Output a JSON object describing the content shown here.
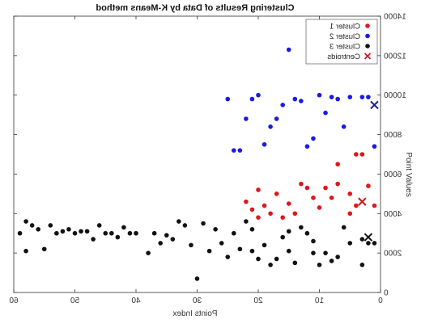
{
  "chart_data": {
    "type": "scatter",
    "title": "Clustering Results of Data by K-Means method",
    "xlabel": "Points Index",
    "ylabel": "Point Values",
    "xlim": [
      0,
      60
    ],
    "ylim": [
      0,
      14000
    ],
    "x_reversed": true,
    "xticks": [
      0,
      10,
      20,
      30,
      40,
      50,
      60
    ],
    "yticks": [
      0,
      2000,
      4000,
      6000,
      8000,
      10000,
      12000,
      14000
    ],
    "ytick_labels": [
      "0",
      "2000",
      "4000",
      "6000",
      "8000",
      "10000",
      "12000",
      "14000"
    ],
    "legend_position": "top-right",
    "grid": false,
    "series": [
      {
        "name": "Cluster 1",
        "color": "#e0161c",
        "marker": "dot",
        "points": [
          [
            1,
            4400
          ],
          [
            2,
            5400
          ],
          [
            3,
            7000
          ],
          [
            4,
            7000
          ],
          [
            5,
            4000
          ],
          [
            5,
            5000
          ],
          [
            7,
            5500
          ],
          [
            8,
            4800
          ],
          [
            9,
            5300
          ],
          [
            10,
            4300
          ],
          [
            11,
            4800
          ],
          [
            12,
            5300
          ],
          [
            13,
            5500
          ],
          [
            14,
            4000
          ],
          [
            15,
            4500
          ],
          [
            16,
            3800
          ],
          [
            17,
            5000
          ],
          [
            18,
            4000
          ],
          [
            19,
            4400
          ],
          [
            20,
            5200
          ],
          [
            20,
            3800
          ],
          [
            21,
            4200
          ],
          [
            22,
            4600
          ],
          [
            4,
            4400
          ],
          [
            7,
            6500
          ]
        ]
      },
      {
        "name": "Cluster 2",
        "color": "#1a1ae6",
        "marker": "dot",
        "points": [
          [
            1,
            7400
          ],
          [
            2,
            9900
          ],
          [
            3,
            9900
          ],
          [
            5,
            9900
          ],
          [
            6,
            8400
          ],
          [
            8,
            9900
          ],
          [
            10,
            10000
          ],
          [
            11,
            7800
          ],
          [
            12,
            7400
          ],
          [
            13,
            9700
          ],
          [
            14,
            9800
          ],
          [
            15,
            12300
          ],
          [
            16,
            9500
          ],
          [
            17,
            8800
          ],
          [
            18,
            8400
          ],
          [
            19,
            7500
          ],
          [
            20,
            10000
          ],
          [
            21,
            9800
          ],
          [
            22,
            8800
          ],
          [
            23,
            7200
          ],
          [
            24,
            7200
          ],
          [
            25,
            9800
          ],
          [
            7,
            9800
          ],
          [
            9,
            9100
          ]
        ]
      },
      {
        "name": "Cluster 3",
        "color": "#111111",
        "marker": "dot",
        "points": [
          [
            1,
            2500
          ],
          [
            2,
            2500
          ],
          [
            3,
            1400
          ],
          [
            3,
            2700
          ],
          [
            5,
            2500
          ],
          [
            6,
            3300
          ],
          [
            7,
            1800
          ],
          [
            8,
            1600
          ],
          [
            9,
            2000
          ],
          [
            10,
            1400
          ],
          [
            11,
            2600
          ],
          [
            11,
            2000
          ],
          [
            12,
            3000
          ],
          [
            13,
            3300
          ],
          [
            14,
            1500
          ],
          [
            15,
            2100
          ],
          [
            15,
            3100
          ],
          [
            16,
            2800
          ],
          [
            17,
            1700
          ],
          [
            18,
            1400
          ],
          [
            19,
            2400
          ],
          [
            20,
            1700
          ],
          [
            21,
            2100
          ],
          [
            21,
            3200
          ],
          [
            22,
            3600
          ],
          [
            23,
            2200
          ],
          [
            24,
            3000
          ],
          [
            25,
            1800
          ],
          [
            26,
            2500
          ],
          [
            27,
            3200
          ],
          [
            28,
            2100
          ],
          [
            29,
            3500
          ],
          [
            30,
            700
          ],
          [
            31,
            2400
          ],
          [
            32,
            3400
          ],
          [
            33,
            3600
          ],
          [
            34,
            2700
          ],
          [
            35,
            2900
          ],
          [
            36,
            2500
          ],
          [
            37,
            3000
          ],
          [
            38,
            2000
          ],
          [
            40,
            3000
          ],
          [
            41,
            3000
          ],
          [
            42,
            3300
          ],
          [
            43,
            2800
          ],
          [
            44,
            3000
          ],
          [
            45,
            3000
          ],
          [
            46,
            3400
          ],
          [
            47,
            2700
          ],
          [
            48,
            3100
          ],
          [
            49,
            3100
          ],
          [
            50,
            3000
          ],
          [
            51,
            3200
          ],
          [
            52,
            3100
          ],
          [
            53,
            3000
          ],
          [
            54,
            3400
          ],
          [
            55,
            2200
          ],
          [
            56,
            3200
          ],
          [
            57,
            3400
          ],
          [
            58,
            3600
          ],
          [
            58,
            2100
          ],
          [
            59,
            3000
          ]
        ]
      },
      {
        "name": "Centroids",
        "color": "#c8171d",
        "marker": "x",
        "points": [
          [
            3,
            4600
          ],
          [
            1,
            9500
          ],
          [
            2,
            2800
          ]
        ],
        "point_colors": [
          "#c8171d",
          "#1a1a9a",
          "#111111"
        ]
      }
    ]
  }
}
